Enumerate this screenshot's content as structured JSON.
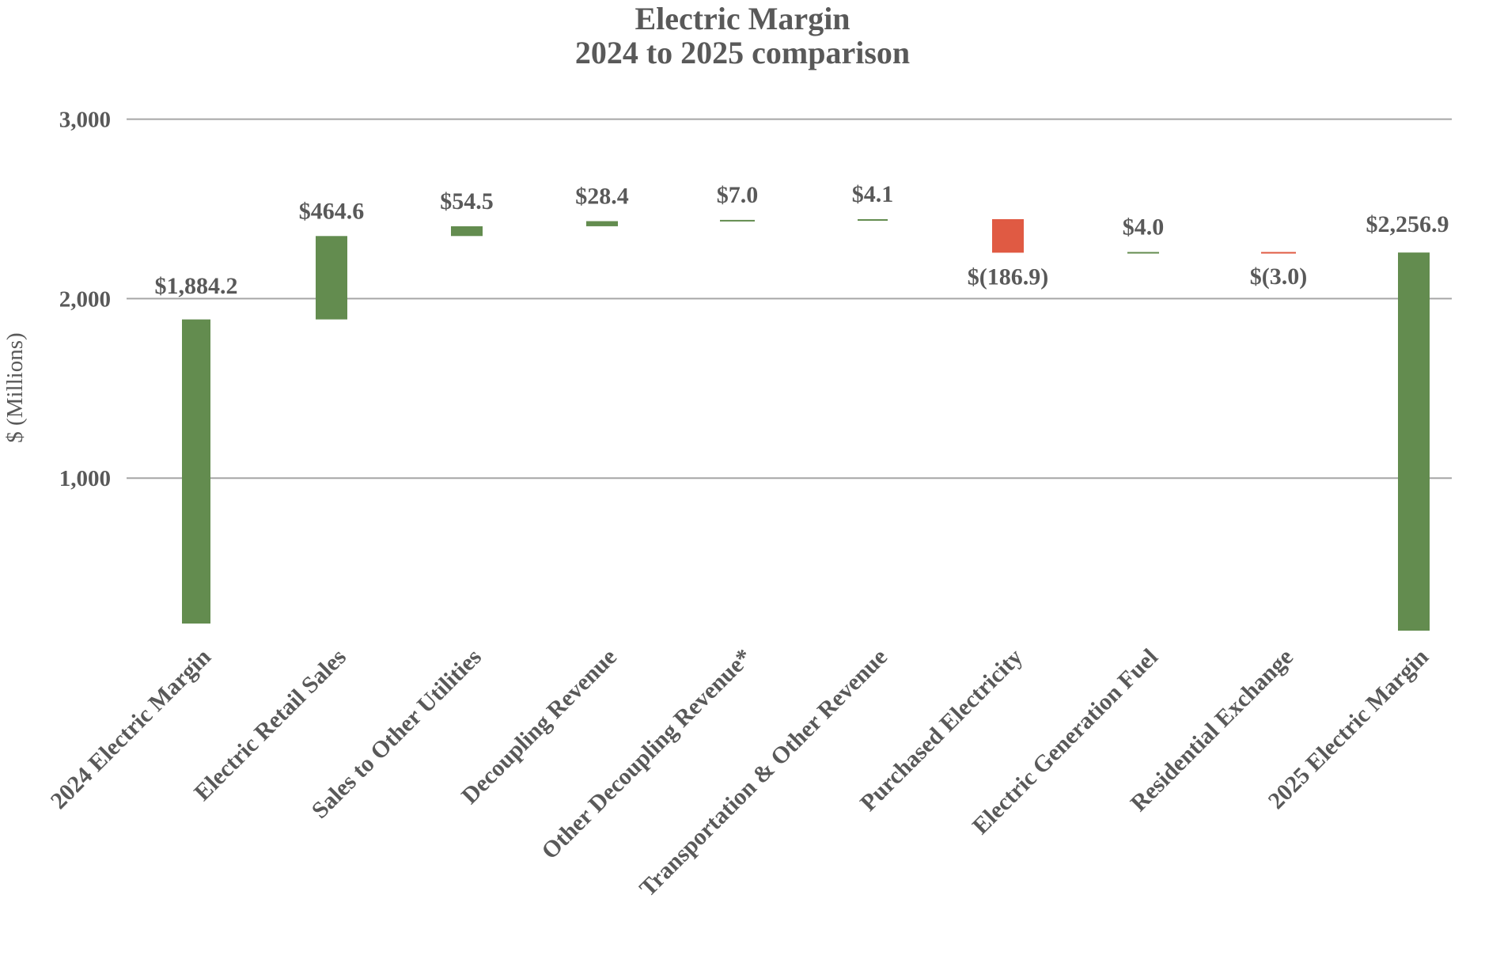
{
  "chart_data": {
    "type": "bar",
    "subtype": "waterfall",
    "title": "Electric Margin",
    "subtitle": "2024 to 2025 comparison",
    "ylabel": "$ (Millions)",
    "xlabel": "",
    "yticks": [
      "3,000",
      "2,000",
      "1,000"
    ],
    "ytick_values": [
      3000,
      2000,
      1000
    ],
    "ylim": [
      0,
      3000
    ],
    "grid": true,
    "legend": "none",
    "colors": {
      "increase": "#638c4f",
      "decrease": "#e05a43",
      "total": "#638c4f",
      "grid": "#a6a6a6",
      "text": "#595959"
    },
    "categories": [
      "2024 Electric Margin",
      "Electric Retail Sales",
      "Sales to Other Utilities",
      "Decoupling Revenue",
      "Other Decoupling Revenue*",
      "Transportation & Other Revenue",
      "Purchased Electricity",
      "Electric Generation Fuel",
      "Residential Exchange",
      "2025 Electric Margin"
    ],
    "values": [
      1884.2,
      464.6,
      54.5,
      28.4,
      7.0,
      4.1,
      -186.9,
      4.0,
      -3.0,
      2256.9
    ],
    "kinds": [
      "total",
      "delta",
      "delta",
      "delta",
      "delta",
      "delta",
      "delta",
      "delta",
      "delta",
      "total"
    ],
    "data_labels": [
      "$1,884.2",
      "$464.6",
      "$54.5",
      "$28.4",
      "$7.0",
      "$4.1",
      "$(186.9)",
      "$4.0",
      "$(3.0)",
      "$2,256.9"
    ]
  }
}
